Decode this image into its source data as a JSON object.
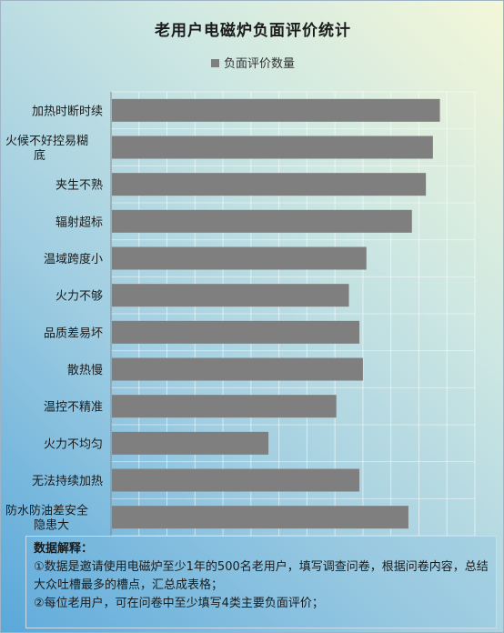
{
  "chart_data": {
    "type": "bar",
    "orientation": "horizontal",
    "title": "老用户电磁炉负面评价统计",
    "categories": [
      "加热时断时续",
      "火候不好控易糊底",
      "夹生不熟",
      "辐射超标",
      "温域跨度小",
      "火力不够",
      "品质差易坏",
      "散热慢",
      "温控不精准",
      "火力不均匀",
      "无法持续加热",
      "防水防油差安全隐患大"
    ],
    "series": [
      {
        "name": "负面评价数量",
        "values": [
          470,
          460,
          450,
          430,
          365,
          340,
          355,
          360,
          322,
          225,
          355,
          425
        ]
      }
    ],
    "xlim": [
      0,
      520
    ],
    "grid": true,
    "legend_position": "top",
    "bar_color": "#7f7f7f"
  },
  "notes": {
    "title": "数据解释：",
    "line1": "①数据是邀请使用电磁炉至少1年的500名老用户，填写调查问卷，根据问卷内容，总结大众吐槽最多的槽点，汇总成表格；",
    "line2": "②每位老用户，可在问卷中至少填写4类主要负面评价；"
  }
}
